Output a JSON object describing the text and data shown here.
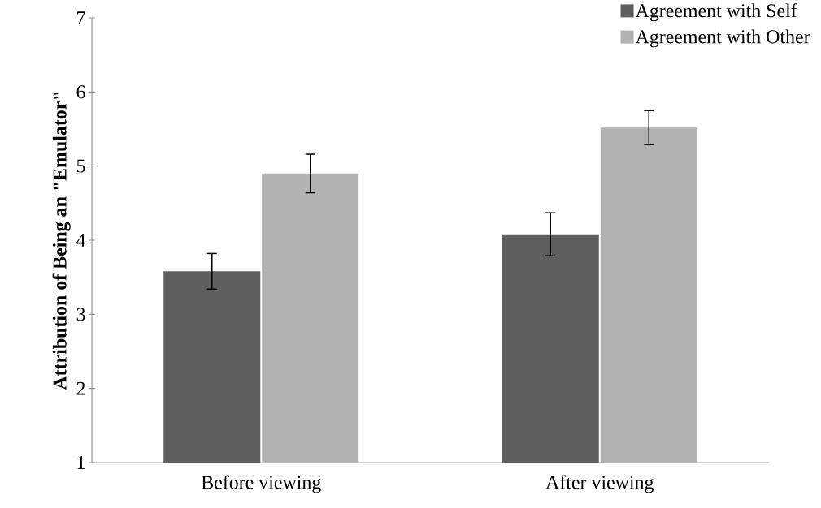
{
  "chart_data": {
    "type": "bar",
    "ylabel": "Attribution of Being an \"Emulator\"",
    "categories": [
      "Before viewing",
      "After viewing"
    ],
    "series": [
      {
        "name": "Agreement with Self",
        "color": "#5f5f5f",
        "values": [
          3.58,
          4.08
        ],
        "errors": [
          0.24,
          0.29
        ]
      },
      {
        "name": "Agreement with Other",
        "color": "#b2b2b2",
        "values": [
          4.9,
          5.52
        ],
        "errors": [
          0.26,
          0.23
        ]
      }
    ],
    "ylim": [
      1,
      7
    ],
    "yticks": [
      1,
      2,
      3,
      4,
      5,
      6,
      7
    ],
    "grid": false,
    "legend": "top right"
  }
}
